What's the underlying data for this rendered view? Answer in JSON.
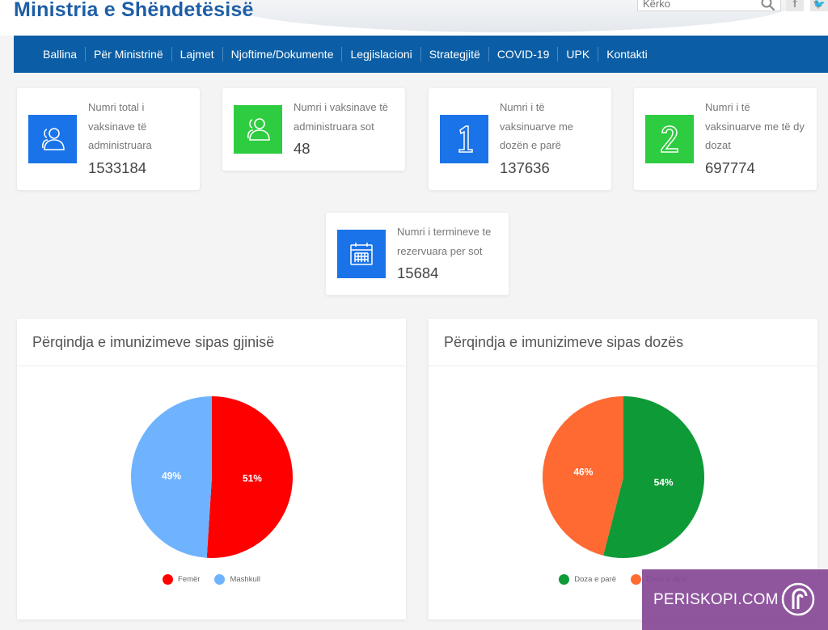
{
  "header": {
    "site_title": "Ministria e Shëndetësisë",
    "search_placeholder": "Kërko"
  },
  "nav": {
    "items": [
      "Ballina",
      "Për Ministrinë",
      "Lajmet",
      "Njoftime/Dokumente",
      "Legjislacioni",
      "Strategjitë",
      "COVID-19",
      "UPK",
      "Kontakti"
    ]
  },
  "stats": {
    "total": {
      "label_lines": [
        "Numri total i",
        "vaksinave të",
        "administruara"
      ],
      "value": "1533184",
      "icon": "users-icon",
      "color": "#1a73e8"
    },
    "today": {
      "label_lines": [
        "Numri i vaksinave të",
        "administruara sot"
      ],
      "value": "48",
      "icon": "users-icon",
      "color": "#2ecc40"
    },
    "first_dose": {
      "label_lines": [
        "Numri i të",
        "vaksinuarve me",
        "dozën e parë"
      ],
      "value": "137636",
      "icon": "number-one-icon",
      "color": "#1a73e8"
    },
    "both_doses": {
      "label_lines": [
        "Numri i të",
        "vaksinuarve me të dy",
        "dozat"
      ],
      "value": "697774",
      "icon": "number-two-icon",
      "color": "#2ecc40"
    },
    "appointments": {
      "label_lines": [
        "Numri i termineve te",
        "rezervuara per sot"
      ],
      "value": "15684",
      "icon": "calendar-icon",
      "color": "#1a73e8"
    }
  },
  "charts": {
    "gender_title": "Përqindja e imunizimeve sipas gjinisë",
    "dose_title": "Përqindja e imunizimeve sipas dozës"
  },
  "chart_data": [
    {
      "type": "pie",
      "title": "Përqindja e imunizimeve sipas gjinisë",
      "categories": [
        "Femër",
        "Mashkull"
      ],
      "values": [
        51,
        49
      ],
      "labels": [
        "51%",
        "49%"
      ],
      "colors": [
        "#ff0000",
        "#6fb3ff"
      ],
      "legend": "bottom"
    },
    {
      "type": "pie",
      "title": "Përqindja e imunizimeve sipas dozës",
      "categories": [
        "Doza e parë",
        "Doza e dytë"
      ],
      "values": [
        54,
        46
      ],
      "labels": [
        "54%",
        "46%"
      ],
      "colors": [
        "#0e9a36",
        "#ff6a33"
      ],
      "legend": "bottom"
    }
  ],
  "watermark": {
    "text": "PERISKOPI.COM"
  }
}
